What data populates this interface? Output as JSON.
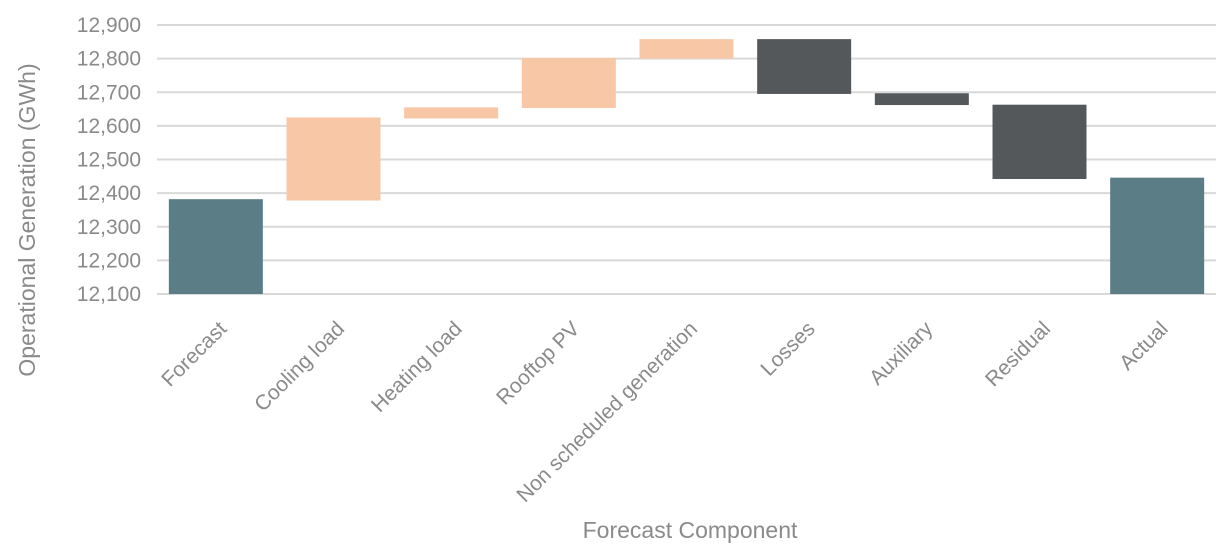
{
  "chart_data": {
    "type": "bar",
    "subtype": "waterfall",
    "title": "",
    "xlabel": "Forecast Component",
    "ylabel": "Operational Generation (GWh)",
    "ylim": [
      12100,
      12900
    ],
    "yticks": [
      12100,
      12200,
      12300,
      12400,
      12500,
      12600,
      12700,
      12800,
      12900
    ],
    "ytick_labels": [
      "12,100",
      "12,200",
      "12,300",
      "12,400",
      "12,500",
      "12,600",
      "12,700",
      "12,800",
      "12,900"
    ],
    "grid": true,
    "legend": "none",
    "categories": [
      "Forecast",
      "Cooling load",
      "Heating load",
      "Rooftop PV",
      "Non scheduled generation",
      "Losses",
      "Auxiliary",
      "Residual",
      "Actual"
    ],
    "bars": [
      {
        "category": "Forecast",
        "kind": "total",
        "start": 12100,
        "end": 12382
      },
      {
        "category": "Cooling load",
        "kind": "increase",
        "start": 12378,
        "end": 12625
      },
      {
        "category": "Heating load",
        "kind": "increase",
        "start": 12622,
        "end": 12655
      },
      {
        "category": "Rooftop PV",
        "kind": "increase",
        "start": 12653,
        "end": 12802
      },
      {
        "category": "Non scheduled generation",
        "kind": "increase",
        "start": 12800,
        "end": 12858
      },
      {
        "category": "Losses",
        "kind": "decrease",
        "start": 12858,
        "end": 12695
      },
      {
        "category": "Auxiliary",
        "kind": "decrease",
        "start": 12697,
        "end": 12662
      },
      {
        "category": "Residual",
        "kind": "decrease",
        "start": 12663,
        "end": 12442
      },
      {
        "category": "Actual",
        "kind": "total",
        "start": 12100,
        "end": 12446
      }
    ],
    "colors": {
      "total": "#5a7d86",
      "increase": "#f8c7a6",
      "decrease": "#54585b",
      "grid": "#d9d9d9",
      "text": "#8a8a8a"
    }
  }
}
